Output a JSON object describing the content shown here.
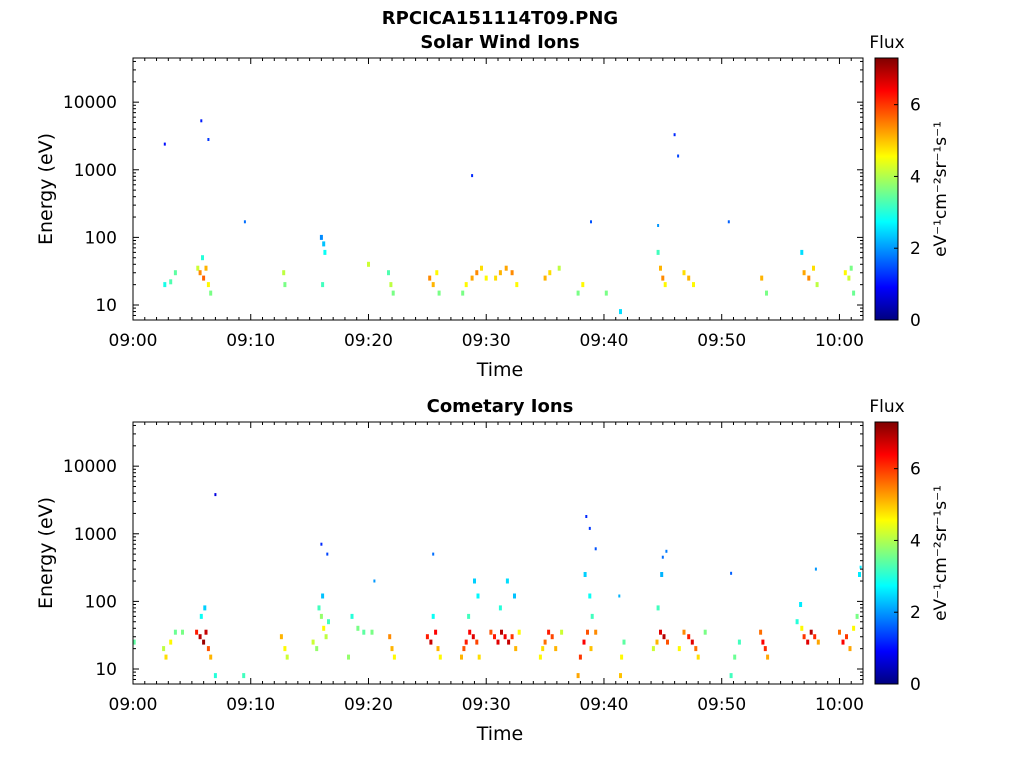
{
  "figure": {
    "title": "RPCICA151114T09.PNG",
    "colors": {
      "background": "#ffffff",
      "axis": "#000000"
    }
  },
  "chart_data": [
    {
      "type": "heatmap",
      "title": "Solar Wind Ions",
      "xlabel": "Time",
      "ylabel": "Energy (eV)",
      "yscale": "log",
      "ylim": [
        6,
        45000
      ],
      "xlim": [
        "09:00",
        "10:02"
      ],
      "x_ticks": [
        "09:00",
        "09:10",
        "09:20",
        "09:30",
        "09:40",
        "09:50",
        "10:00"
      ],
      "y_ticks": [
        "10",
        "100",
        "1000",
        "10000"
      ],
      "y_tick_values": [
        10,
        100,
        1000,
        10000
      ],
      "colorbar": {
        "label": "Flux",
        "unit_text": "eV⁻¹cm⁻²sr⁻¹s⁻¹",
        "ticks": [
          "0",
          "2",
          "4",
          "6"
        ],
        "tick_values": [
          0,
          2,
          4,
          6
        ],
        "range": [
          0,
          7.3
        ],
        "colormap": "jet"
      },
      "cells": [
        [
          2.7,
          20,
          2.9
        ],
        [
          3.2,
          22,
          3.3
        ],
        [
          3.6,
          30,
          3.4
        ],
        [
          5.5,
          35,
          4.2
        ],
        [
          5.7,
          30,
          5.4
        ],
        [
          6.0,
          25,
          5.7
        ],
        [
          6.2,
          35,
          5.1
        ],
        [
          6.4,
          20,
          4.6
        ],
        [
          6.6,
          15,
          3.6
        ],
        [
          5.9,
          50,
          3.0
        ],
        [
          12.8,
          30,
          4.1
        ],
        [
          12.9,
          20,
          3.6
        ],
        [
          16.0,
          100,
          1.9
        ],
        [
          16.2,
          80,
          2.3
        ],
        [
          16.3,
          60,
          2.8
        ],
        [
          16.1,
          20,
          3.2
        ],
        [
          20.0,
          40,
          4.2
        ],
        [
          21.7,
          30,
          3.3
        ],
        [
          21.9,
          20,
          4.1
        ],
        [
          22.1,
          15,
          3.6
        ],
        [
          25.2,
          25,
          5.4
        ],
        [
          25.5,
          20,
          5.1
        ],
        [
          25.8,
          30,
          4.6
        ],
        [
          26.0,
          15,
          3.6
        ],
        [
          28.0,
          15,
          3.6
        ],
        [
          28.3,
          20,
          4.6
        ],
        [
          28.8,
          25,
          5.2
        ],
        [
          29.2,
          30,
          5.4
        ],
        [
          29.6,
          35,
          4.8
        ],
        [
          30.0,
          25,
          4.6
        ],
        [
          30.8,
          25,
          4.8
        ],
        [
          31.2,
          30,
          5.1
        ],
        [
          31.7,
          35,
          5.2
        ],
        [
          32.2,
          30,
          5.4
        ],
        [
          32.6,
          20,
          4.6
        ],
        [
          35.0,
          25,
          5.1
        ],
        [
          35.4,
          30,
          4.8
        ],
        [
          36.2,
          35,
          4.1
        ],
        [
          37.8,
          15,
          3.6
        ],
        [
          38.2,
          20,
          4.6
        ],
        [
          40.2,
          15,
          3.6
        ],
        [
          41.4,
          8,
          2.5
        ],
        [
          44.6,
          60,
          3.2
        ],
        [
          44.8,
          35,
          5.1
        ],
        [
          45.0,
          25,
          5.4
        ],
        [
          45.2,
          20,
          4.6
        ],
        [
          46.8,
          30,
          4.8
        ],
        [
          47.2,
          25,
          5.1
        ],
        [
          47.6,
          20,
          4.6
        ],
        [
          53.4,
          25,
          5.1
        ],
        [
          53.8,
          15,
          3.6
        ],
        [
          56.8,
          60,
          2.5
        ],
        [
          57.0,
          30,
          5.2
        ],
        [
          57.4,
          25,
          5.4
        ],
        [
          57.8,
          35,
          4.8
        ],
        [
          58.1,
          20,
          4.1
        ],
        [
          60.5,
          30,
          4.6
        ],
        [
          60.8,
          25,
          4.2
        ],
        [
          61.0,
          35,
          3.6
        ],
        [
          61.2,
          15,
          3.5
        ]
      ],
      "sparse_points": [
        [
          2.7,
          2400,
          1.0
        ],
        [
          5.8,
          5300,
          1.1
        ],
        [
          6.4,
          2800,
          1.3
        ],
        [
          9.5,
          170,
          1.7
        ],
        [
          28.8,
          820,
          1.2
        ],
        [
          38.9,
          170,
          1.5
        ],
        [
          44.6,
          150,
          2.0
        ],
        [
          46.0,
          3300,
          1.2
        ],
        [
          46.3,
          1600,
          1.4
        ],
        [
          50.6,
          170,
          1.6
        ]
      ]
    },
    {
      "type": "heatmap",
      "title": "Cometary Ions",
      "xlabel": "Time",
      "ylabel": "Energy (eV)",
      "yscale": "log",
      "ylim": [
        6,
        45000
      ],
      "xlim": [
        "09:00",
        "10:02"
      ],
      "x_ticks": [
        "09:00",
        "09:10",
        "09:20",
        "09:30",
        "09:40",
        "09:50",
        "10:00"
      ],
      "y_ticks": [
        "10",
        "100",
        "1000",
        "10000"
      ],
      "y_tick_values": [
        10,
        100,
        1000,
        10000
      ],
      "colorbar": {
        "label": "Flux",
        "unit_text": "eV⁻¹cm⁻²sr⁻¹s⁻¹",
        "ticks": [
          "0",
          "2",
          "4",
          "6"
        ],
        "tick_values": [
          0,
          2,
          4,
          6
        ],
        "range": [
          0,
          7.3
        ],
        "colormap": "jet"
      },
      "cells": [
        [
          0.1,
          25,
          3.4
        ],
        [
          2.6,
          20,
          4.1
        ],
        [
          2.8,
          15,
          4.8
        ],
        [
          3.2,
          25,
          4.6
        ],
        [
          3.6,
          35,
          3.5
        ],
        [
          4.2,
          35,
          3.6
        ],
        [
          5.4,
          35,
          6.2
        ],
        [
          5.7,
          30,
          6.9
        ],
        [
          6.0,
          25,
          7.1
        ],
        [
          6.2,
          35,
          6.8
        ],
        [
          6.4,
          20,
          5.8
        ],
        [
          6.6,
          15,
          5.1
        ],
        [
          5.8,
          60,
          2.8
        ],
        [
          6.1,
          80,
          2.4
        ],
        [
          7.0,
          8,
          3.0
        ],
        [
          9.4,
          8,
          3.2
        ],
        [
          12.6,
          30,
          5.1
        ],
        [
          12.9,
          20,
          4.6
        ],
        [
          13.1,
          15,
          4.2
        ],
        [
          15.3,
          25,
          4.2
        ],
        [
          15.6,
          20,
          3.8
        ],
        [
          15.8,
          80,
          3.2
        ],
        [
          16.0,
          60,
          3.8
        ],
        [
          16.2,
          40,
          4.6
        ],
        [
          16.4,
          30,
          4.1
        ],
        [
          16.6,
          50,
          3.2
        ],
        [
          16.1,
          120,
          2.3
        ],
        [
          18.6,
          60,
          3.0
        ],
        [
          19.1,
          40,
          3.6
        ],
        [
          19.6,
          35,
          3.4
        ],
        [
          20.3,
          35,
          3.6
        ],
        [
          18.3,
          15,
          3.8
        ],
        [
          21.8,
          30,
          5.4
        ],
        [
          22.0,
          20,
          5.1
        ],
        [
          22.2,
          15,
          4.6
        ],
        [
          25.0,
          30,
          6.2
        ],
        [
          25.3,
          25,
          6.8
        ],
        [
          25.7,
          35,
          6.4
        ],
        [
          25.9,
          20,
          5.1
        ],
        [
          26.1,
          15,
          4.6
        ],
        [
          25.5,
          60,
          2.8
        ],
        [
          27.9,
          15,
          5.1
        ],
        [
          28.1,
          20,
          5.8
        ],
        [
          28.3,
          25,
          6.2
        ],
        [
          28.6,
          35,
          6.4
        ],
        [
          28.9,
          30,
          6.6
        ],
        [
          29.2,
          25,
          5.9
        ],
        [
          29.4,
          15,
          4.8
        ],
        [
          29.0,
          200,
          2.4
        ],
        [
          29.3,
          120,
          2.7
        ],
        [
          28.5,
          60,
          3.2
        ],
        [
          30.4,
          35,
          5.8
        ],
        [
          30.7,
          30,
          6.2
        ],
        [
          31.0,
          25,
          6.6
        ],
        [
          31.3,
          35,
          6.9
        ],
        [
          31.6,
          30,
          6.5
        ],
        [
          31.9,
          25,
          6.8
        ],
        [
          32.2,
          30,
          6.0
        ],
        [
          32.5,
          20,
          5.1
        ],
        [
          32.8,
          35,
          4.6
        ],
        [
          31.8,
          200,
          2.5
        ],
        [
          32.4,
          120,
          2.3
        ],
        [
          31.2,
          80,
          3.0
        ],
        [
          34.6,
          15,
          4.6
        ],
        [
          34.8,
          20,
          4.8
        ],
        [
          35.0,
          25,
          5.6
        ],
        [
          35.3,
          35,
          6.2
        ],
        [
          35.6,
          30,
          5.9
        ],
        [
          35.9,
          20,
          5.1
        ],
        [
          36.4,
          35,
          4.2
        ],
        [
          37.8,
          8,
          5.2
        ],
        [
          38.0,
          15,
          6.0
        ],
        [
          38.3,
          25,
          6.4
        ],
        [
          38.6,
          35,
          5.8
        ],
        [
          38.9,
          20,
          5.0
        ],
        [
          39.3,
          35,
          5.4
        ],
        [
          38.4,
          250,
          2.4
        ],
        [
          38.8,
          120,
          2.8
        ],
        [
          39.0,
          60,
          3.2
        ],
        [
          41.4,
          8,
          5.0
        ],
        [
          41.5,
          15,
          4.6
        ],
        [
          41.7,
          25,
          3.4
        ],
        [
          44.2,
          20,
          4.2
        ],
        [
          44.5,
          25,
          5.1
        ],
        [
          44.8,
          35,
          6.6
        ],
        [
          45.1,
          30,
          6.9
        ],
        [
          45.4,
          25,
          5.8
        ],
        [
          44.6,
          80,
          3.2
        ],
        [
          44.9,
          250,
          2.2
        ],
        [
          46.4,
          20,
          4.6
        ],
        [
          46.8,
          35,
          5.4
        ],
        [
          47.2,
          30,
          6.2
        ],
        [
          47.5,
          25,
          6.6
        ],
        [
          47.8,
          20,
          5.6
        ],
        [
          48.0,
          15,
          4.8
        ],
        [
          48.6,
          35,
          3.6
        ],
        [
          50.8,
          8,
          3.2
        ],
        [
          51.1,
          15,
          3.5
        ],
        [
          51.5,
          25,
          3.2
        ],
        [
          53.3,
          35,
          5.6
        ],
        [
          53.5,
          25,
          6.4
        ],
        [
          53.7,
          20,
          6.1
        ],
        [
          53.9,
          15,
          5.2
        ],
        [
          56.4,
          50,
          3.0
        ],
        [
          56.8,
          40,
          4.6
        ],
        [
          57.0,
          30,
          6.0
        ],
        [
          57.3,
          25,
          6.6
        ],
        [
          57.6,
          35,
          6.9
        ],
        [
          57.9,
          30,
          6.1
        ],
        [
          58.2,
          25,
          5.2
        ],
        [
          56.7,
          90,
          2.6
        ],
        [
          60.0,
          35,
          5.6
        ],
        [
          60.3,
          25,
          6.4
        ],
        [
          60.6,
          30,
          6.0
        ],
        [
          60.9,
          20,
          5.2
        ],
        [
          61.2,
          40,
          4.6
        ],
        [
          61.5,
          60,
          3.6
        ],
        [
          61.7,
          250,
          2.6
        ]
      ],
      "sparse_points": [
        [
          7.0,
          3800,
          0.7
        ],
        [
          16.0,
          700,
          1.2
        ],
        [
          16.5,
          500,
          1.4
        ],
        [
          20.5,
          200,
          2.0
        ],
        [
          25.5,
          500,
          1.7
        ],
        [
          38.5,
          1800,
          1.2
        ],
        [
          38.8,
          1200,
          1.3
        ],
        [
          39.3,
          600,
          1.5
        ],
        [
          41.3,
          120,
          2.2
        ],
        [
          45.0,
          450,
          1.7
        ],
        [
          45.3,
          550,
          1.8
        ],
        [
          50.8,
          260,
          1.6
        ],
        [
          58.0,
          300,
          2.0
        ],
        [
          61.8,
          320,
          2.6
        ]
      ]
    }
  ]
}
